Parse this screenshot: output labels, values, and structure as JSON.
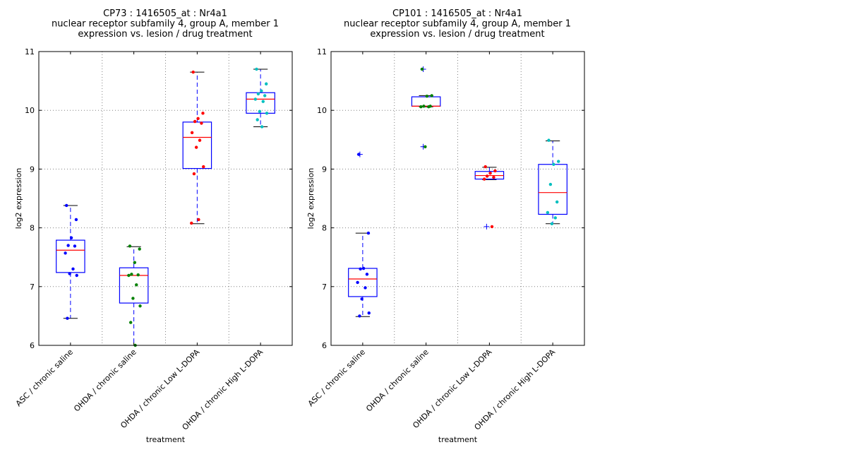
{
  "chart_data": [
    {
      "type": "box",
      "title": [
        "CP73 : 1416505_at : Nr4a1",
        "nuclear receptor subfamily 4, group A, member 1",
        "expression vs. lesion / drug treatment"
      ],
      "xlabel": "treatment",
      "ylabel": "log2 expression",
      "ylim": [
        6,
        11
      ],
      "yticks": [
        "6",
        "7",
        "8",
        "9",
        "10",
        "11"
      ],
      "grid": true,
      "categories": [
        "ASC / chronic saline",
        "OHDA / chronic saline",
        "OHDA / chronic Low L-DOPA",
        "OHDA / chronic High L-DOPA"
      ],
      "point_colors": [
        "#0000ff",
        "#008000",
        "#ff0000",
        "#00bfbf"
      ],
      "boxes": [
        {
          "whisker_low": 6.46,
          "q1": 7.24,
          "median": 7.62,
          "q3": 7.79,
          "whisker_high": 8.38,
          "outliers": [],
          "points": [
            8.38,
            8.14,
            7.83,
            7.7,
            7.69,
            7.57,
            7.3,
            7.22,
            7.19,
            6.46
          ]
        },
        {
          "whisker_low": 6.0,
          "q1": 6.72,
          "median": 7.19,
          "q3": 7.32,
          "whisker_high": 7.68,
          "outliers": [],
          "points": [
            7.69,
            7.64,
            7.41,
            7.21,
            7.2,
            7.19,
            7.03,
            6.8,
            6.67,
            6.39,
            6.0
          ]
        },
        {
          "whisker_low": 8.07,
          "q1": 9.01,
          "median": 9.54,
          "q3": 9.8,
          "whisker_high": 10.65,
          "outliers": [],
          "points": [
            10.65,
            9.95,
            9.86,
            9.81,
            9.78,
            9.62,
            9.49,
            9.37,
            9.04,
            8.92,
            8.14,
            8.08
          ]
        },
        {
          "whisker_low": 9.72,
          "q1": 9.95,
          "median": 10.19,
          "q3": 10.3,
          "whisker_high": 10.7,
          "outliers": [],
          "points": [
            10.7,
            10.45,
            10.33,
            10.28,
            10.25,
            10.19,
            10.15,
            9.98,
            9.95,
            9.84,
            9.72
          ]
        }
      ]
    },
    {
      "type": "box",
      "title": [
        "CP101 : 1416505_at : Nr4a1",
        "nuclear receptor subfamily 4, group A, member 1",
        "expression vs. lesion / drug treatment"
      ],
      "xlabel": "treatment",
      "ylabel": "log2 expression",
      "ylim": [
        6,
        11
      ],
      "yticks": [
        "6",
        "7",
        "8",
        "9",
        "10",
        "11"
      ],
      "grid": true,
      "categories": [
        "ASC / chronic saline",
        "OHDA / chronic saline",
        "OHDA / chronic Low L-DOPA",
        "OHDA / chronic High L-DOPA"
      ],
      "point_colors": [
        "#0000ff",
        "#008000",
        "#ff0000",
        "#00bfbf"
      ],
      "boxes": [
        {
          "whisker_low": 6.49,
          "q1": 6.83,
          "median": 7.13,
          "q3": 7.31,
          "whisker_high": 7.91,
          "outliers": [
            9.25
          ],
          "points": [
            9.25,
            7.91,
            7.31,
            7.3,
            7.21,
            7.07,
            6.98,
            6.79,
            6.55,
            6.5
          ]
        },
        {
          "whisker_low": 10.06,
          "q1": 10.07,
          "median": 10.07,
          "q3": 10.23,
          "whisker_high": 10.25,
          "outliers": [
            10.7,
            9.38
          ],
          "points": [
            10.7,
            10.25,
            10.24,
            10.07,
            10.07,
            10.06,
            10.06,
            9.38
          ]
        },
        {
          "whisker_low": 8.82,
          "q1": 8.83,
          "median": 8.89,
          "q3": 8.96,
          "whisker_high": 9.03,
          "outliers": [
            8.02
          ],
          "points": [
            9.04,
            8.97,
            8.93,
            8.88,
            8.86,
            8.83,
            8.02
          ]
        },
        {
          "whisker_low": 8.07,
          "q1": 8.23,
          "median": 8.6,
          "q3": 9.08,
          "whisker_high": 9.48,
          "outliers": [],
          "points": [
            9.49,
            9.13,
            9.08,
            8.74,
            8.44,
            8.26,
            8.17,
            8.07
          ]
        }
      ]
    }
  ]
}
